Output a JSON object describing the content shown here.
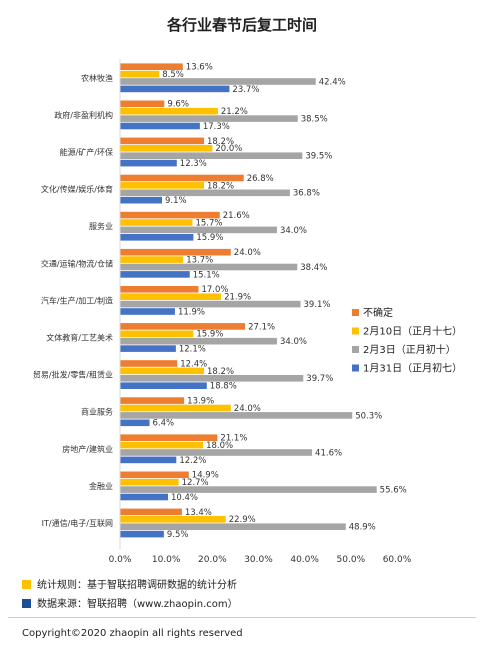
{
  "chart_data": {
    "type": "bar",
    "orientation": "horizontal",
    "title": "各行业春节后复工时间",
    "categories": [
      "农林牧渔",
      "政府/非盈利机构",
      "能源/矿产/环保",
      "文化/传媒/娱乐/体育",
      "服务业",
      "交通/运输/物流/仓储",
      "汽车/生产/加工/制造",
      "文体教育/工艺美术",
      "贸易/批发/零售/租赁业",
      "商业服务",
      "房地产/建筑业",
      "金融业",
      "IT/通信/电子/互联网"
    ],
    "series": [
      {
        "name": "不确定",
        "color": "#ED7D31",
        "values": [
          13.6,
          9.6,
          18.2,
          26.8,
          21.6,
          24.0,
          17.0,
          27.1,
          12.4,
          13.9,
          21.1,
          14.9,
          13.4
        ]
      },
      {
        "name": "2月10日（正月十七）",
        "color": "#FFC000",
        "values": [
          8.5,
          21.2,
          20.0,
          18.2,
          15.7,
          13.7,
          21.9,
          15.9,
          18.2,
          24.0,
          18.0,
          12.7,
          22.9
        ]
      },
      {
        "name": "2月3日（正月初十）",
        "color": "#A5A5A5",
        "values": [
          42.4,
          38.5,
          39.5,
          36.8,
          34.0,
          38.4,
          39.1,
          34.0,
          39.7,
          50.3,
          41.6,
          55.6,
          48.9
        ]
      },
      {
        "name": "1月31日（正月初七）",
        "color": "#4472C4",
        "values": [
          23.7,
          17.3,
          12.3,
          9.1,
          15.9,
          15.1,
          11.9,
          12.1,
          18.8,
          6.4,
          12.2,
          10.4,
          9.5
        ]
      }
    ],
    "xlim": [
      0,
      60
    ],
    "xticks": [
      "0.0%",
      "10.0%",
      "20.0%",
      "30.0%",
      "40.0%",
      "50.0%",
      "60.0%"
    ],
    "value_suffix": "%",
    "legend_position": "right",
    "grid": false
  },
  "footer": {
    "note1": {
      "text": "统计规则：基于智联招聘调研数据的统计分析",
      "color": "#FFC000"
    },
    "note2": {
      "text": "数据来源：智联招聘（www.zhaopin.com）",
      "color": "#1F4E99"
    },
    "copyright": "Copyright©2020 zhaopin all rights reserved"
  }
}
